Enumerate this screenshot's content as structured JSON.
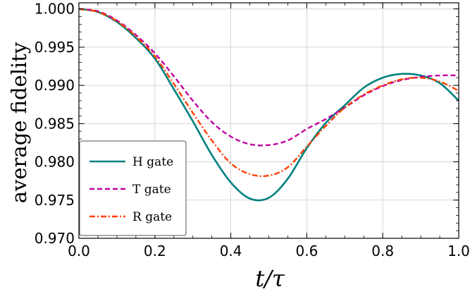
{
  "chart_data": {
    "type": "line",
    "xlabel": "t/τ",
    "ylabel": "average fidelity",
    "xlim": [
      0.0,
      1.0
    ],
    "ylim": [
      0.97,
      1.0008
    ],
    "grid": true,
    "legend_position": "bottom-left",
    "x_ticks": [
      0.0,
      0.2,
      0.4,
      0.6,
      0.8,
      1.0
    ],
    "x_tick_labels": [
      "0.0",
      "0.2",
      "0.4",
      "0.6",
      "0.8",
      "1.0"
    ],
    "y_ticks": [
      0.97,
      0.975,
      0.98,
      0.985,
      0.99,
      0.995,
      1.0
    ],
    "y_tick_labels": [
      "0.970",
      "0.975",
      "0.980",
      "0.985",
      "0.990",
      "0.995",
      "1.000"
    ],
    "x": [
      0.0,
      0.05,
      0.1,
      0.15,
      0.2,
      0.25,
      0.3,
      0.35,
      0.4,
      0.45,
      0.5,
      0.55,
      0.6,
      0.65,
      0.7,
      0.75,
      0.8,
      0.85,
      0.9,
      0.95,
      1.0
    ],
    "series": [
      {
        "name": "H gate",
        "color": "#008080",
        "dash": "solid",
        "values": [
          1.0,
          0.9996,
          0.9983,
          0.9962,
          0.9935,
          0.9895,
          0.9853,
          0.9809,
          0.9773,
          0.9752,
          0.9753,
          0.9778,
          0.9818,
          0.9851,
          0.9874,
          0.9897,
          0.991,
          0.9915,
          0.9913,
          0.9903,
          0.988
        ]
      },
      {
        "name": "T gate",
        "color": "#c000a0",
        "dash": "dashed",
        "values": [
          1.0,
          0.9997,
          0.9985,
          0.9966,
          0.9942,
          0.9912,
          0.988,
          0.9852,
          0.9833,
          0.9823,
          0.9822,
          0.9828,
          0.9843,
          0.9856,
          0.9871,
          0.9887,
          0.9899,
          0.9907,
          0.9911,
          0.9913,
          0.9913
        ]
      },
      {
        "name": "R gate",
        "color": "#ff4000",
        "dash": "dashdot",
        "values": [
          1.0,
          0.9996,
          0.9984,
          0.9964,
          0.9938,
          0.9902,
          0.9864,
          0.9828,
          0.9798,
          0.9784,
          0.9782,
          0.9793,
          0.982,
          0.9847,
          0.9871,
          0.9888,
          0.99,
          0.9908,
          0.991,
          0.9905,
          0.9893
        ]
      }
    ]
  }
}
